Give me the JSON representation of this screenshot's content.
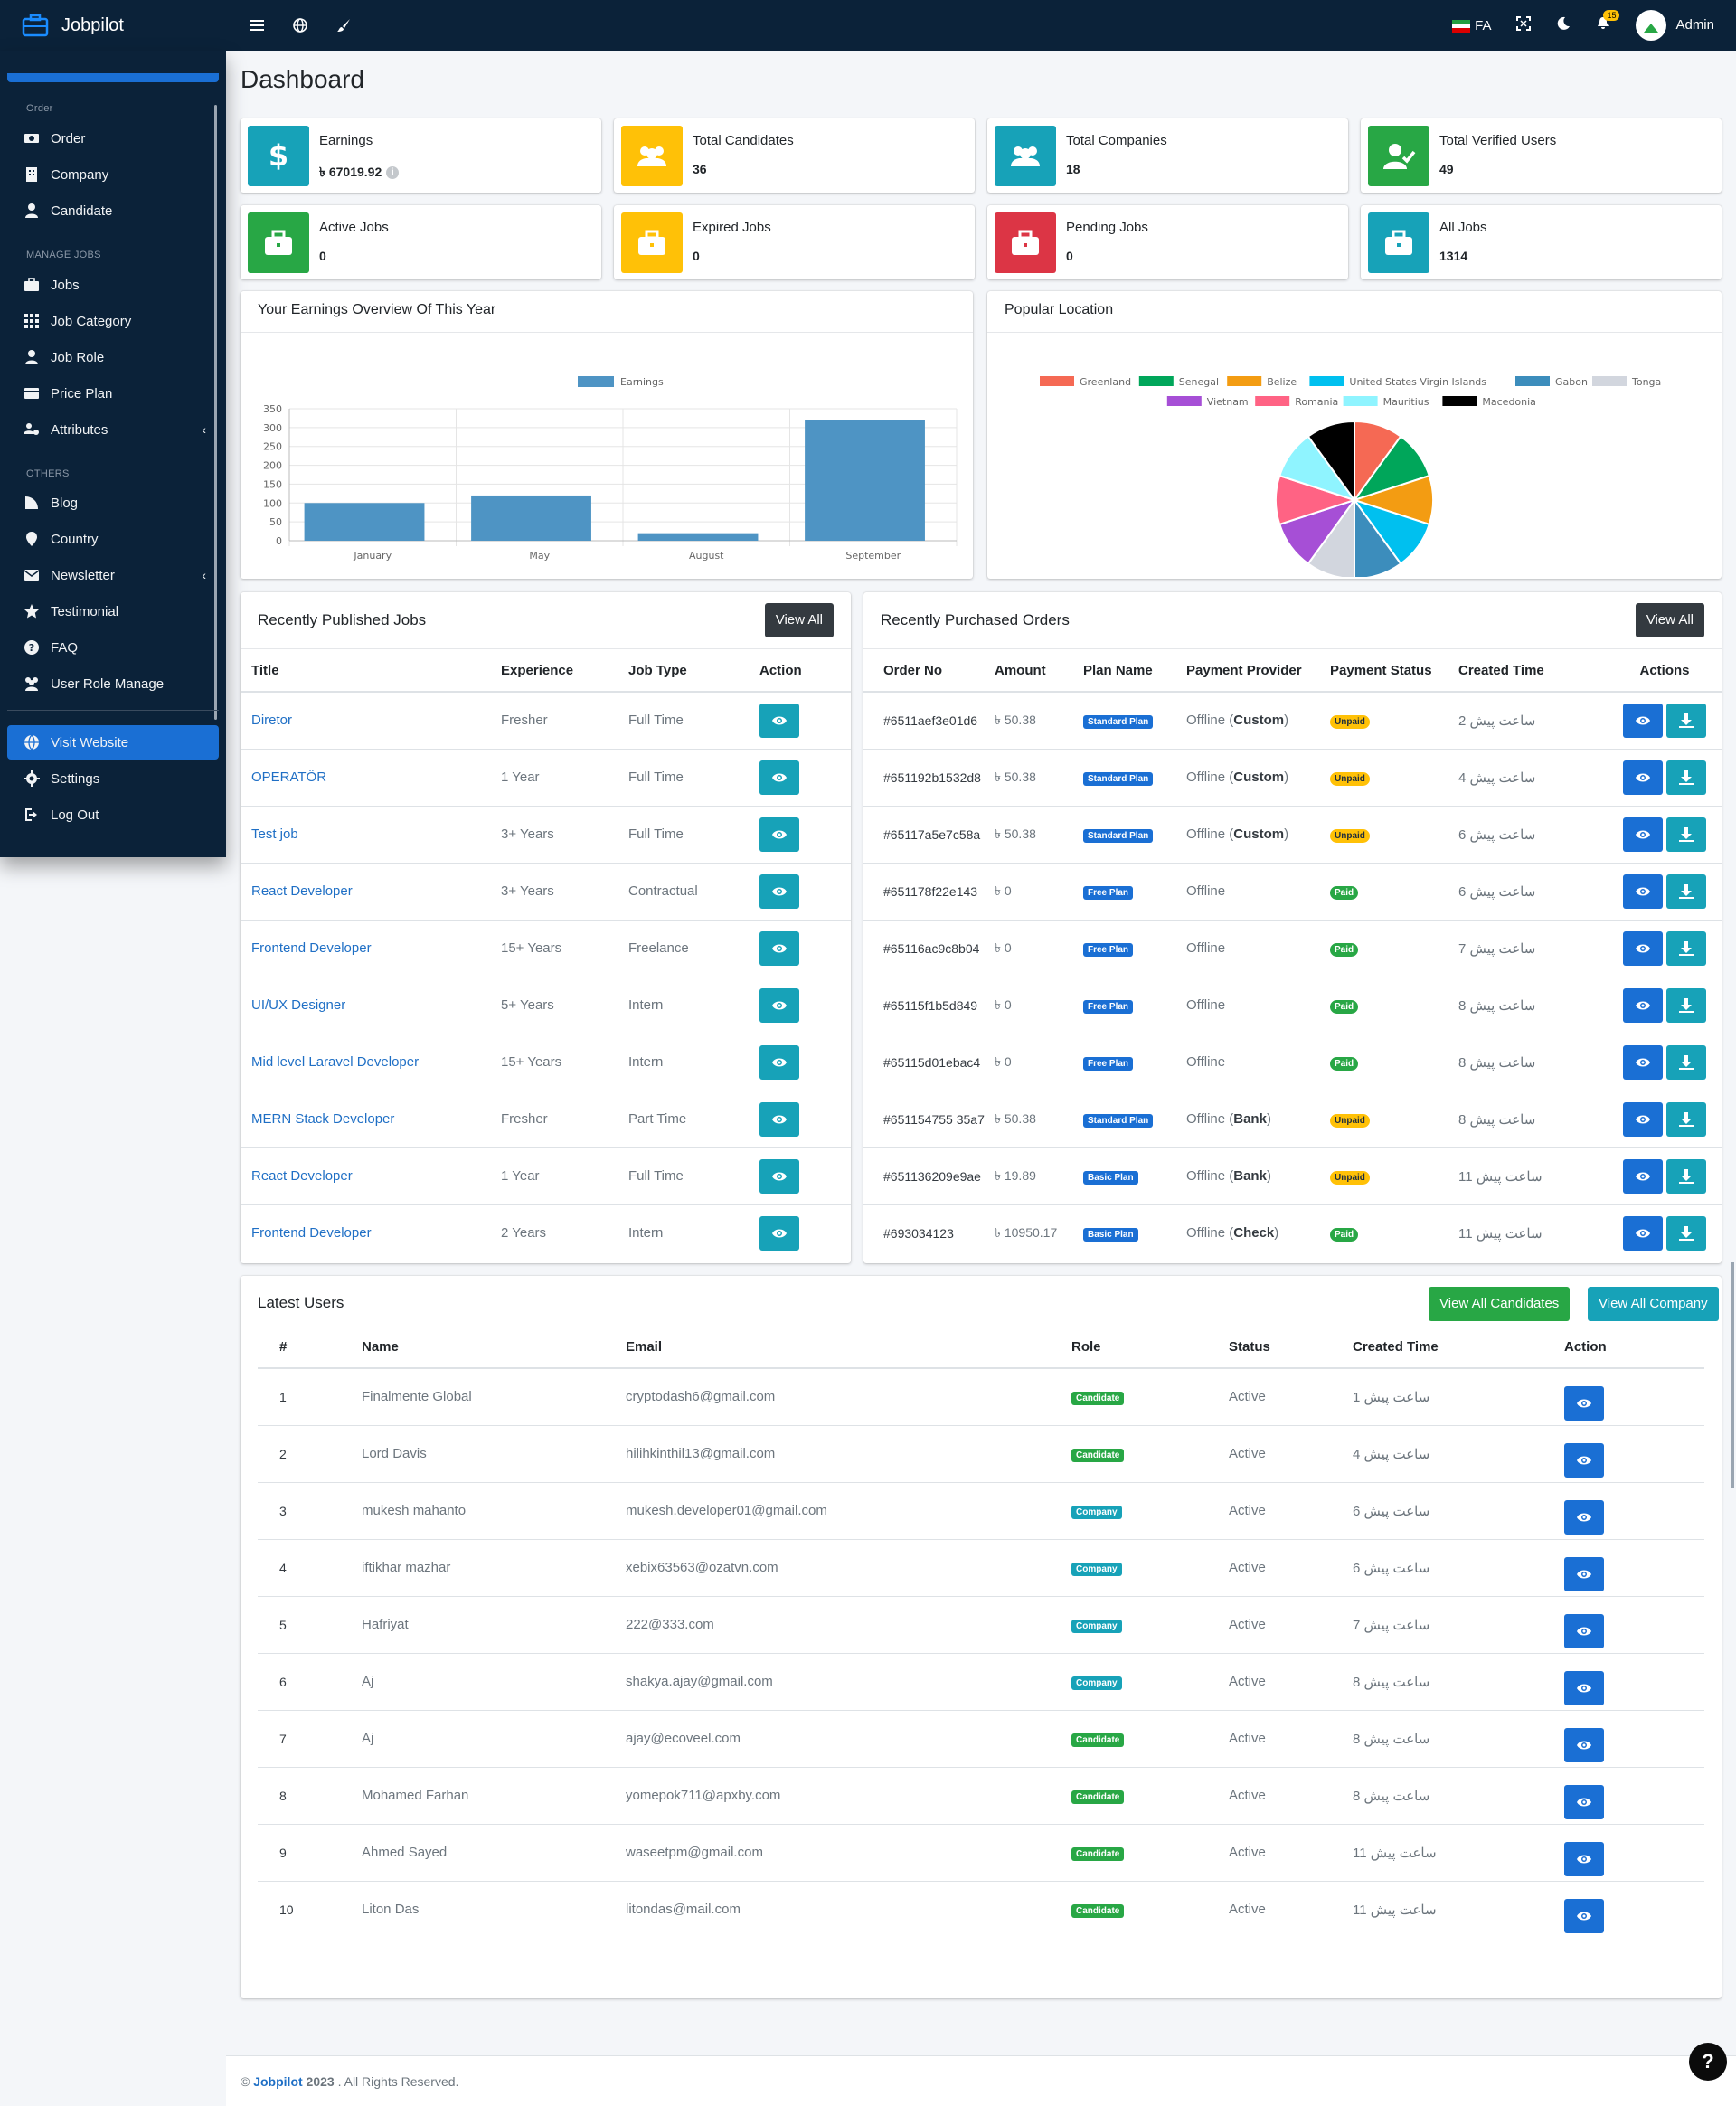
{
  "brand": "Jobpilot",
  "topbar": {
    "lang": "FA",
    "notification_count": "15",
    "user": "Admin"
  },
  "sidebar": {
    "section_order": "Order",
    "section_jobs": "MANAGE JOBS",
    "section_others": "OTHERS",
    "items": [
      "Order",
      "Company",
      "Candidate",
      "Jobs",
      "Job Category",
      "Job Role",
      "Price Plan",
      "Attributes",
      "Blog",
      "Country",
      "Newsletter",
      "Testimonial",
      "FAQ",
      "User Role Manage",
      "Visit Website",
      "Settings",
      "Log Out"
    ]
  },
  "page_title": "Dashboard",
  "stats": [
    {
      "label": "Earnings",
      "value": "৳ 67019.92",
      "color": "#17a2b8",
      "icon": "dollar-icon"
    },
    {
      "label": "Total Candidates",
      "value": "36",
      "color": "#ffc107",
      "icon": "users-icon"
    },
    {
      "label": "Total Companies",
      "value": "18",
      "color": "#17a2b8",
      "icon": "users-icon"
    },
    {
      "label": "Total Verified Users",
      "value": "49",
      "color": "#28a745",
      "icon": "user-check-icon"
    },
    {
      "label": "Active Jobs",
      "value": "0",
      "color": "#28a745",
      "icon": "briefcase-icon"
    },
    {
      "label": "Expired Jobs",
      "value": "0",
      "color": "#ffc107",
      "icon": "briefcase-icon"
    },
    {
      "label": "Pending Jobs",
      "value": "0",
      "color": "#dc3545",
      "icon": "briefcase-icon"
    },
    {
      "label": "All Jobs",
      "value": "1314",
      "color": "#17a2b8",
      "icon": "briefcase-icon"
    }
  ],
  "earnings_card": {
    "title": "Your Earnings Overview Of This Year"
  },
  "location_card": {
    "title": "Popular Location"
  },
  "chart_data": [
    {
      "type": "bar",
      "title": "",
      "categories": [
        "January",
        "May",
        "August",
        "September"
      ],
      "series": [
        {
          "name": "Earnings",
          "values": [
            100,
            120,
            20,
            320
          ]
        }
      ],
      "ylim": [
        0,
        350
      ],
      "yticks": [
        0,
        50,
        100,
        150,
        200,
        250,
        300,
        350
      ],
      "legend": "top-center",
      "color": "#4e94c4"
    },
    {
      "type": "pie",
      "title": "",
      "labels": [
        "Greenland",
        "Senegal",
        "Belize",
        "United States Virgin Islands",
        "Gabon",
        "Tonga",
        "Vietnam",
        "Romania",
        "Mauritius",
        "Macedonia"
      ],
      "values": [
        1,
        1,
        1,
        1,
        1,
        1,
        1,
        1,
        1,
        1
      ],
      "colors": [
        "#f56954",
        "#00a65a",
        "#f39c12",
        "#00c0ef",
        "#3c8dbc",
        "#d2d6de",
        "#a64fd6",
        "#ff6384",
        "#8ff4ff",
        "#000000"
      ],
      "legend": "top-center"
    }
  ],
  "jobs_card": {
    "title": "Recently Published Jobs",
    "view_all": "View All",
    "columns": [
      "Title",
      "Experience",
      "Job Type",
      "Action"
    ],
    "rows": [
      [
        "Diretor",
        "Fresher",
        "Full Time"
      ],
      [
        "OPERATÖR",
        "1 Year",
        "Full Time"
      ],
      [
        "Test job",
        "3+ Years",
        "Full Time"
      ],
      [
        "React Developer",
        "3+ Years",
        "Contractual"
      ],
      [
        "Frontend Developer",
        "15+ Years",
        "Freelance"
      ],
      [
        "UI/UX Designer",
        "5+ Years",
        "Intern"
      ],
      [
        "Mid level Laravel Developer",
        "15+ Years",
        "Intern"
      ],
      [
        "MERN Stack Developer",
        "Fresher",
        "Part Time"
      ],
      [
        "React Developer",
        "1 Year",
        "Full Time"
      ],
      [
        "Frontend Developer",
        "2 Years",
        "Intern"
      ]
    ]
  },
  "orders_card": {
    "title": "Recently Purchased Orders",
    "view_all": "View All",
    "columns": [
      "Order No",
      "Amount",
      "Plan Name",
      "Payment Provider",
      "Payment Status",
      "Created Time",
      "Actions"
    ],
    "rows": [
      [
        "#6511aef3e01d6",
        "৳ 50.38",
        "Standard Plan",
        "Offline (",
        "Custom",
        ")",
        "Unpaid",
        "2 ساعت پیش"
      ],
      [
        "#651192b1532d8",
        "৳ 50.38",
        "Standard Plan",
        "Offline (",
        "Custom",
        ")",
        "Unpaid",
        "4 ساعت پیش"
      ],
      [
        "#65117a5e7c58a",
        "৳ 50.38",
        "Standard Plan",
        "Offline (",
        "Custom",
        ")",
        "Unpaid",
        "6 ساعت پیش"
      ],
      [
        "#651178f22e143",
        "৳ 0",
        "Free Plan",
        "Offline",
        "",
        "",
        "Paid",
        "6 ساعت پیش"
      ],
      [
        "#65116ac9c8b04",
        "৳ 0",
        "Free Plan",
        "Offline",
        "",
        "",
        "Paid",
        "7 ساعت پیش"
      ],
      [
        "#65115f1b5d849",
        "৳ 0",
        "Free Plan",
        "Offline",
        "",
        "",
        "Paid",
        "8 ساعت پیش"
      ],
      [
        "#65115d01ebac4",
        "৳ 0",
        "Free Plan",
        "Offline",
        "",
        "",
        "Paid",
        "8 ساعت پیش"
      ],
      [
        "#651154755 35a7",
        "৳ 50.38",
        "Standard Plan",
        "Offline (",
        "Bank",
        ")",
        "Unpaid",
        "8 ساعت پیش"
      ],
      [
        "#651136209e9ae",
        "৳ 19.89",
        "Basic Plan",
        "Offline (",
        "Bank",
        ")",
        "Unpaid",
        "11 ساعت پیش"
      ],
      [
        "#693034123",
        "৳ 10950.17",
        "Basic Plan",
        "Offline (",
        "Check",
        ")",
        "Paid",
        "11 ساعت پیش"
      ]
    ]
  },
  "users_card": {
    "title": "Latest Users",
    "btn_candidates": "View All Candidates",
    "btn_company": "View All Company",
    "columns": [
      "#",
      "Name",
      "Email",
      "Role",
      "Status",
      "Created Time",
      "Action"
    ],
    "rows": [
      [
        "1",
        "Finalmente Global",
        "cryptodash6@gmail.com",
        "Candidate",
        "Active",
        "1 ساعت پیش"
      ],
      [
        "2",
        "Lord Davis",
        "hilihkinthil13@gmail.com",
        "Candidate",
        "Active",
        "4 ساعت پیش"
      ],
      [
        "3",
        "mukesh mahanto",
        "mukesh.developer01@gmail.com",
        "Company",
        "Active",
        "6 ساعت پیش"
      ],
      [
        "4",
        "iftikhar mazhar",
        "xebix63563@ozatvn.com",
        "Company",
        "Active",
        "6 ساعت پیش"
      ],
      [
        "5",
        "Hafriyat",
        "222@333.com",
        "Company",
        "Active",
        "7 ساعت پیش"
      ],
      [
        "6",
        "Aj",
        "shakya.ajay@gmail.com",
        "Company",
        "Active",
        "8 ساعت پیش"
      ],
      [
        "7",
        "Aj",
        "ajay@ecoveel.com",
        "Candidate",
        "Active",
        "8 ساعت پیش"
      ],
      [
        "8",
        "Mohamed Farhan",
        "yomepok711@apxby.com",
        "Candidate",
        "Active",
        "8 ساعت پیش"
      ],
      [
        "9",
        "Ahmed Sayed",
        "waseetpm@gmail.com",
        "Candidate",
        "Active",
        "11 ساعت پیش"
      ],
      [
        "10",
        "Liton Das",
        "litondas@mail.com",
        "Candidate",
        "Active",
        "11 ساعت پیش"
      ]
    ]
  },
  "footer": {
    "copyright": "©",
    "brand": "Jobpilot",
    "year": "2023",
    "rights": ". All Rights Reserved."
  },
  "help_label": "?"
}
